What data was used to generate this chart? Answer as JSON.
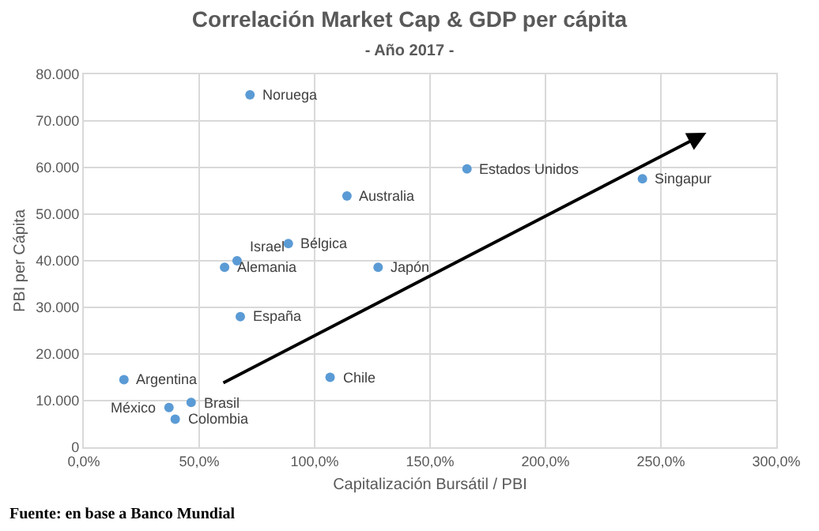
{
  "chart_data": {
    "type": "scatter",
    "title": "Correlación Market Cap & GDP per cápita",
    "subtitle": "- Año 2017 -",
    "xlabel": "Capitalización Bursátil / PBI",
    "ylabel": "PBI per Cápita",
    "series": [
      {
        "color": "#5b9bd5",
        "x": [
          72,
          114,
          166,
          242,
          88.6,
          66.4,
          61,
          127.5,
          67.8,
          106.7,
          17.4,
          46.5,
          36.9,
          39.6
        ],
        "values": [
          75600,
          53900,
          59700,
          57600,
          43700,
          40000,
          38600,
          38600,
          28000,
          15000,
          14500,
          9600,
          8500,
          6000
        ]
      }
    ],
    "xlim": [
      0,
      300
    ],
    "ylim": [
      0,
      80000
    ],
    "xticks": [
      {
        "value": 0,
        "label": "0,0%"
      },
      {
        "value": 50,
        "label": "50,0%"
      },
      {
        "value": 100,
        "label": "100,0%"
      },
      {
        "value": 150,
        "label": "150,0%"
      },
      {
        "value": 200,
        "label": "200,0%"
      },
      {
        "value": 250,
        "label": "250,0%"
      },
      {
        "value": 300,
        "label": "300,0%"
      }
    ],
    "yticks": [
      0,
      {
        "value": 10000,
        "label": "10.000"
      },
      {
        "value": 20000,
        "label": "20.000"
      },
      {
        "value": 30000,
        "label": "30.000"
      },
      {
        "value": 40000,
        "label": "40.000"
      },
      {
        "value": 50000,
        "label": "50.000"
      },
      {
        "value": 60000,
        "label": "60.000"
      },
      {
        "value": 70000,
        "label": "70.000"
      },
      {
        "value": 80000,
        "label": "80.000"
      }
    ],
    "grid": true,
    "marker": "circle",
    "annotations": [
      {
        "text": "Noruega",
        "x": 72,
        "y": 75600
      },
      {
        "text": "Australia",
        "x": 114,
        "y": 53900
      },
      {
        "text": "Estados Unidos",
        "x": 166,
        "y": 59700
      },
      {
        "text": "Singapur",
        "x": 242,
        "y": 57600
      },
      {
        "text": "Bélgica",
        "x": 88.6,
        "y": 43700
      },
      {
        "text": "Israel",
        "x": 66.4,
        "y": 40000
      },
      {
        "text": "Alemania",
        "x": 61,
        "y": 38600
      },
      {
        "text": "Japón",
        "x": 127.5,
        "y": 38600
      },
      {
        "text": "España",
        "x": 67.8,
        "y": 28000
      },
      {
        "text": "Chile",
        "x": 106.7,
        "y": 15000
      },
      {
        "text": "Argentina",
        "x": 17.4,
        "y": 14500
      },
      {
        "text": "Brasil",
        "x": 46.5,
        "y": 9600
      },
      {
        "text": "México",
        "x": 36.9,
        "y": 8500
      },
      {
        "text": "Colombia",
        "x": 39.6,
        "y": 6000
      },
      "Fuente: en base a Banco Mundial"
    ]
  }
}
